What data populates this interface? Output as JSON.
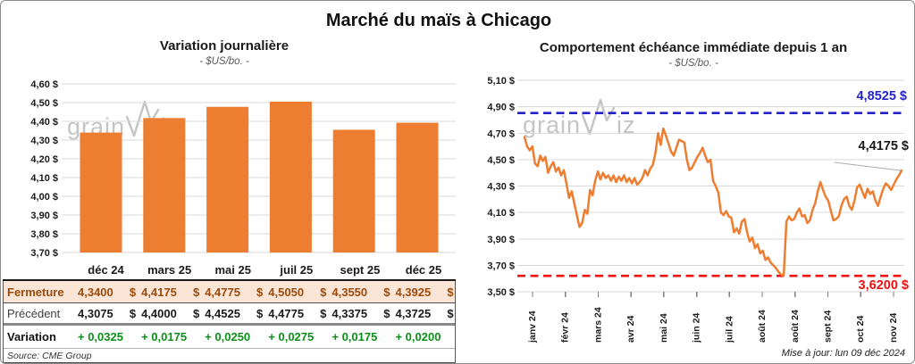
{
  "page": {
    "title": "Marché du maïs à Chicago",
    "source": "Source: CME Group",
    "updated": "Mise à jour: lun 09 déc 2024",
    "watermark": {
      "part1": "grain",
      "part2": "iz"
    }
  },
  "colors": {
    "orange": "#ED7D31",
    "peach_row_bg": "#FBE5D6",
    "brown_text": "#9C4A0B",
    "green_text": "#0A9018",
    "blue_line": "#2323C8",
    "red_line": "#EE1111",
    "grid": "#DADADA",
    "axis_text": "#1A1A1A",
    "watermark_gray": "#C5C5C5",
    "leader_gray": "#ABABAB"
  },
  "chart_data": [
    {
      "type": "bar",
      "title": "Variation journalière",
      "subtitle": "- $US/bo. -",
      "categories": [
        "déc 24",
        "mars 25",
        "mai 25",
        "juil 25",
        "sept 25",
        "déc 25"
      ],
      "values": [
        4.34,
        4.4175,
        4.4775,
        4.505,
        4.355,
        4.3925
      ],
      "ylim": [
        3.7,
        4.6
      ],
      "ytick_step": 0.1,
      "ytick_labels": [
        "4,60 $",
        "4,50 $",
        "4,40 $",
        "4,30 $",
        "4,20 $",
        "4,10 $",
        "4,00 $",
        "3,90 $",
        "3,80 $",
        "3,70 $"
      ],
      "bar_color": "#ED7D31",
      "grid": true
    },
    {
      "type": "line",
      "title": "Comportement échéance immédiate depuis 1 an",
      "subtitle": "- $US/bo. -",
      "x_tick_labels": [
        "janv 24",
        "févr 24",
        "mars 24",
        "avr 24",
        "mai 24",
        "juin 24",
        "juil 24",
        "août 24",
        "août 24",
        "sept 24",
        "oct 24",
        "nov 24"
      ],
      "ylim": [
        3.5,
        5.1
      ],
      "ytick_step": 0.2,
      "ytick_labels": [
        "5,10 $",
        "4,90 $",
        "4,70 $",
        "4,50 $",
        "4,30 $",
        "4,10 $",
        "3,90 $",
        "3,70 $",
        "3,50 $"
      ],
      "line_color": "#ED7D31",
      "grid": true,
      "resistance": {
        "value": 4.8525,
        "label": "4,8525 $",
        "color": "#2323C8"
      },
      "support": {
        "value": 3.62,
        "label": "3,6200 $",
        "color": "#EE1111"
      },
      "last_point": {
        "value": 4.4175,
        "label": "4,4175 $"
      },
      "values": [
        4.67,
        4.6,
        4.57,
        4.6,
        4.47,
        4.45,
        4.53,
        4.49,
        4.52,
        4.4,
        4.45,
        4.48,
        4.41,
        4.44,
        4.38,
        4.42,
        4.32,
        4.21,
        4.26,
        4.17,
        4.08,
        3.99,
        4.02,
        4.12,
        4.09,
        4.27,
        4.23,
        4.34,
        4.41,
        4.35,
        4.4,
        4.36,
        4.38,
        4.34,
        4.38,
        4.33,
        4.37,
        4.34,
        4.38,
        4.33,
        4.36,
        4.32,
        4.36,
        4.31,
        4.33,
        4.36,
        4.42,
        4.38,
        4.43,
        4.46,
        4.55,
        4.7,
        4.61,
        4.735,
        4.68,
        4.62,
        4.56,
        4.53,
        4.59,
        4.65,
        4.64,
        4.63,
        4.5,
        4.42,
        4.44,
        4.48,
        4.52,
        4.55,
        4.59,
        4.53,
        4.48,
        4.5,
        4.34,
        4.3,
        4.25,
        4.1,
        4.08,
        4.11,
        4.07,
        4.06,
        3.95,
        3.98,
        3.94,
        4.03,
        4.05,
        3.95,
        3.88,
        3.91,
        3.83,
        3.86,
        3.79,
        3.81,
        3.74,
        3.76,
        3.72,
        3.7,
        3.68,
        3.65,
        3.63,
        3.62,
        4.03,
        4.07,
        4.04,
        4.05,
        4.1,
        4.13,
        4.07,
        4.08,
        4.02,
        4.04,
        4.12,
        4.17,
        4.26,
        4.33,
        4.27,
        4.22,
        4.19,
        4.11,
        4.04,
        4.05,
        4.07,
        4.15,
        4.2,
        4.22,
        4.15,
        4.12,
        4.19,
        4.29,
        4.31,
        4.26,
        4.21,
        4.28,
        4.24,
        4.26,
        4.19,
        4.15,
        4.22,
        4.28,
        4.32,
        4.3,
        4.27,
        4.31,
        4.35,
        4.38,
        4.4175
      ]
    }
  ],
  "table": {
    "header": [
      "déc 24",
      "mars 25",
      "mai 25",
      "juil 25",
      "sept 25",
      "déc 25"
    ],
    "rows": [
      {
        "label": "Fermeture",
        "unit": "$",
        "values": [
          "4,3400",
          "4,4175",
          "4,4775",
          "4,5050",
          "4,3550",
          "4,3925"
        ]
      },
      {
        "label": "Précédent",
        "unit": "$",
        "values": [
          "4,3075",
          "4,4000",
          "4,4525",
          "4,4775",
          "4,3375",
          "4,3725"
        ]
      },
      {
        "label": "Variation",
        "unit": "",
        "values": [
          "+ 0,0325",
          "+ 0,0175",
          "+ 0,0250",
          "+ 0,0275",
          "+ 0,0175",
          "+ 0,0200"
        ]
      }
    ]
  }
}
